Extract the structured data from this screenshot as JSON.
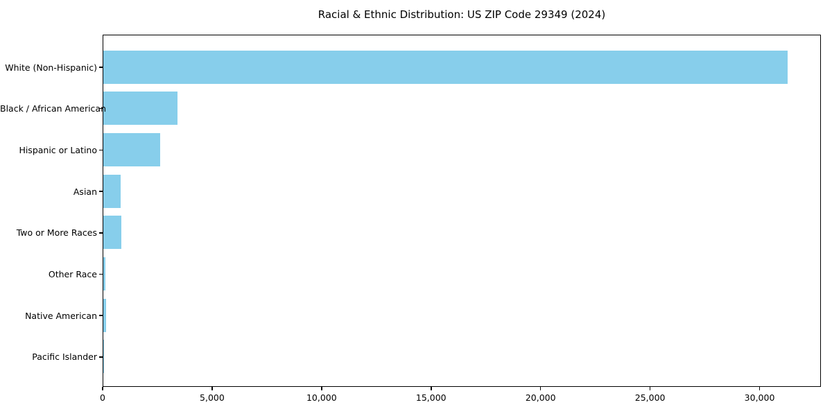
{
  "title": "Racial & Ethnic Distribution: US ZIP Code 29349 (2024)",
  "chart_data": {
    "type": "bar",
    "orientation": "horizontal",
    "title": "Racial & Ethnic Distribution: US ZIP Code 29349 (2024)",
    "categories": [
      "White (Non-Hispanic)",
      "Black / African American",
      "Hispanic or Latino",
      "Asian",
      "Two or More Races",
      "Other Race",
      "Native American",
      "Pacific Islander"
    ],
    "values": [
      31250,
      3380,
      2590,
      790,
      835,
      85,
      120,
      10
    ],
    "xlabel": "",
    "ylabel": "",
    "xlim": [
      0,
      32800
    ],
    "xticks": {
      "values": [
        0,
        5000,
        10000,
        15000,
        20000,
        25000,
        30000
      ],
      "labels": [
        "0",
        "5,000",
        "10,000",
        "15,000",
        "20,000",
        "25,000",
        "30,000"
      ]
    },
    "grid": false,
    "legend_position": "none",
    "bar_color": "#87CEEB",
    "background_color": "#FFFFFF",
    "spine_color": "#000000",
    "text_color": "#000000"
  }
}
